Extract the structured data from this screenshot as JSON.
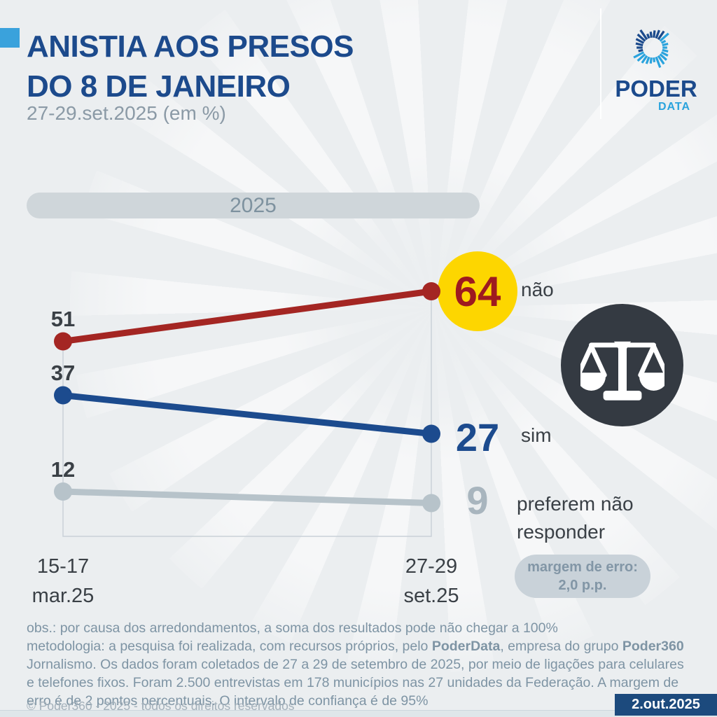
{
  "header": {
    "title_line1": "ANISTIA AOS PRESOS",
    "title_line2": "DO 8 DE JANEIRO",
    "subtitle": "27-29.set.2025 (em %)",
    "title_color": "#1c4a8c",
    "accent_color": "#3aa2dc"
  },
  "logo": {
    "brand": "PODER",
    "sub": "DATA",
    "icon": "sunburst-logo-icon",
    "brand_color": "#1b4a8c",
    "sub_color": "#2aa3dd"
  },
  "period_pill": {
    "label": "2025"
  },
  "chart_data": {
    "type": "line",
    "title": "ANISTIA AOS PRESOS DO 8 DE JANEIRO",
    "subtitle": "27-29.set.2025 (em %)",
    "unit": "%",
    "grid": false,
    "legend_position": "right-of-last-point",
    "x_categories": [
      "15-17 mar.25",
      "27-29 set.25"
    ],
    "series": [
      {
        "name": "não",
        "values": [
          51,
          64
        ],
        "color": "#a42623"
      },
      {
        "name": "sim",
        "values": [
          37,
          27
        ],
        "color": "#1c4b8e"
      },
      {
        "name": "preferem não responder",
        "values": [
          12,
          9
        ],
        "color": "#b7c3ca"
      }
    ],
    "highlight": {
      "value": 64,
      "bg_color": "#fdd600",
      "text_color": "#9e1a1f"
    },
    "frame_color": "#c9d1d7"
  },
  "axis": {
    "col1": [
      "15-17",
      "mar.25"
    ],
    "col2": [
      "27-29",
      "set.25"
    ]
  },
  "margin_badge": {
    "line1": "margem de erro:",
    "line2": "2,0 p.p."
  },
  "icons": {
    "scales_of_justice": "⚖",
    "sunburst": "✺"
  },
  "footer": {
    "note": "obs.: por causa dos arredondamentos, a soma dos resultados pode não chegar a 100%",
    "methodology_parts": [
      {
        "text": "metodologia: a pesquisa foi realizada, com recursos próprios, pelo ",
        "bold": false
      },
      {
        "text": "PoderData",
        "bold": true
      },
      {
        "text": ", empresa do grupo ",
        "bold": false
      },
      {
        "text": "Poder360",
        "bold": true
      },
      {
        "text": " Jornalismo. Os dados foram coletados de 27 a 29 de setembro de 2025, por meio de ligações para celulares e telefones fixos. Foram 2.500 entrevistas em 178 municípios nas 27 unidades da Federação. A margem de erro é de 2 pontos percentuais. O intervalo de confiança é de 95%",
        "bold": false
      }
    ],
    "copyright": "© Poder360 - 2025 - todos os direitos reservados",
    "date_badge": "2.out.2025"
  }
}
